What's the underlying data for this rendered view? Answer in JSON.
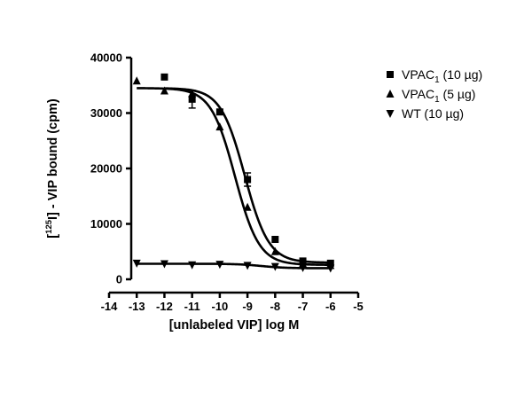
{
  "chart_data": {
    "type": "scatter",
    "xlabel": "[unlabeled VIP] log M",
    "ylabel": {
      "prefix": "[",
      "superscript": "125",
      "suffix": "I] - VIP bound (cpm)"
    },
    "xlim": [
      -14,
      -5
    ],
    "ylim": [
      0,
      40000
    ],
    "x_ticks": [
      -14,
      -13,
      -12,
      -11,
      -10,
      -9,
      -8,
      -7,
      -6,
      -5
    ],
    "x_tick_labels": [
      "-14",
      "-13",
      "-12",
      "-11",
      "-10",
      "-9",
      "-8",
      "-7",
      "-6",
      "-5"
    ],
    "y_ticks": [
      0,
      10000,
      20000,
      30000,
      40000
    ],
    "y_tick_labels": [
      "0",
      "10000",
      "20000",
      "30000",
      "40000"
    ],
    "grid": false,
    "legend_position": "top-right",
    "series": [
      {
        "name": "VPAC1 (10 µg)",
        "legend": {
          "base": "VPAC",
          "sub": "1",
          "rest": " (10 µg)"
        },
        "marker": "square",
        "x": [
          -12,
          -11,
          -10,
          -9,
          -8,
          -7,
          -6
        ],
        "y": [
          36500,
          32500,
          30200,
          18000,
          7200,
          3300,
          2900
        ],
        "error": [
          0,
          1600,
          0,
          1200,
          0,
          0,
          0
        ],
        "fit": {
          "top": 34500,
          "bottom": 3000,
          "log_ec50": -9.1,
          "hill": -1
        }
      },
      {
        "name": "VPAC1 (5 µg)",
        "legend": {
          "base": "VPAC",
          "sub": "1",
          "rest": " (5 µg)"
        },
        "marker": "triangle-up",
        "x": [
          -13,
          -12,
          -11,
          -10,
          -9,
          -8,
          -7,
          -6
        ],
        "y": [
          35800,
          34000,
          33500,
          27500,
          13000,
          5000,
          2800,
          2500
        ],
        "error": [
          0,
          0,
          0,
          0,
          0,
          0,
          0,
          0
        ],
        "fit": {
          "top": 34500,
          "bottom": 2600,
          "log_ec50": -9.45,
          "hill": -1
        }
      },
      {
        "name": "WT (10 µg)",
        "legend": {
          "base": "WT (10 µg)",
          "sub": "",
          "rest": ""
        },
        "marker": "triangle-down",
        "x": [
          -13,
          -12,
          -11,
          -10,
          -9,
          -8,
          -7,
          -6
        ],
        "y": [
          2900,
          2800,
          2600,
          2700,
          2500,
          2300,
          2100,
          2000
        ],
        "error": [
          0,
          0,
          0,
          0,
          0,
          0,
          0,
          0
        ],
        "fit": {
          "top": 2800,
          "bottom": 2000,
          "log_ec50": -8.5,
          "hill": -1
        }
      }
    ]
  }
}
